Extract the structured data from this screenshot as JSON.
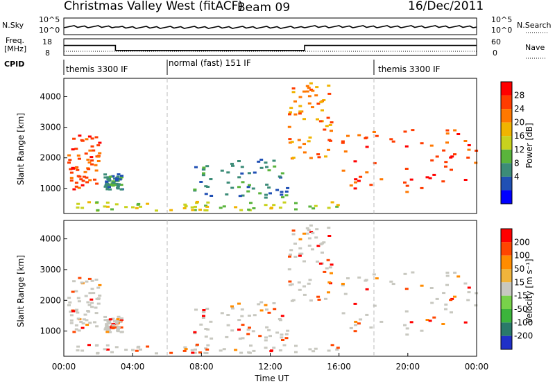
{
  "header": {
    "title": "Christmas Valley West (fitACF)",
    "beam": "Beam 09",
    "date": "16/Dec/2011"
  },
  "summary": {
    "nsky_label": "N.Sky",
    "nsky_ticks": [
      "10^5",
      "10^0"
    ],
    "nsearch_label": "N.Search",
    "nsearch_ticks": [
      "10^5",
      "10^0"
    ],
    "freq_label_1": "Freq.",
    "freq_label_2": "[MHz]",
    "freq_ticks": [
      "18",
      "8"
    ],
    "nave_label": "Nave",
    "nave_ticks": [
      "60",
      "0"
    ],
    "cpid_label": "CPID",
    "cpid_segments": [
      "themis 3300 IF",
      "normal (fast) 151 IF",
      "themis 3300 IF"
    ]
  },
  "power_panel": {
    "ylabel": "Slant Range [km]",
    "yticks": [
      "4000",
      "3000",
      "2000",
      "1000"
    ],
    "colorbar_label": "Power [dB]",
    "colorbar_ticks": [
      "28",
      "24",
      "20",
      "16",
      "12",
      "8",
      "4"
    ],
    "colors": [
      "#0000ff",
      "#2050b4",
      "#3c8c78",
      "#5ab43c",
      "#c8d21e",
      "#f0b400",
      "#ff7800",
      "#ff3c00",
      "#ff0000"
    ]
  },
  "velocity_panel": {
    "ylabel": "Slant Range [km]",
    "yticks": [
      "4000",
      "3000",
      "2000",
      "1000"
    ],
    "colorbar_label": "Velocity [m s⁻¹]",
    "colorbar_ticks": [
      "200",
      "100",
      "50",
      "15",
      "-15",
      "-50",
      "-100",
      "-200"
    ],
    "colors": [
      "#2030c8",
      "#2a7a6a",
      "#3cb43c",
      "#78d24a",
      "#c8c8c0",
      "#f0b43c",
      "#ff8c00",
      "#ff4600",
      "#ff0000"
    ],
    "ground_scatter_color": "#c8c8c0"
  },
  "xaxis": {
    "label": "Time UT",
    "ticks": [
      "00:00",
      "04:00",
      "08:00",
      "12:00",
      "16:00",
      "20:00",
      "00:00"
    ]
  },
  "chart_data": {
    "type": "heatmap",
    "x_range_hours": [
      0,
      24
    ],
    "y_range_km": [
      180,
      4600
    ],
    "cpid_changes_hours": [
      6,
      18
    ],
    "freq_steps_mhz": [
      {
        "from_hour": 0,
        "to_hour": 3,
        "freq": 14
      },
      {
        "from_hour": 3,
        "to_hour": 14,
        "freq": 11
      },
      {
        "from_hour": 14,
        "to_hour": 24,
        "freq": 14
      }
    ],
    "scatter_regions": [
      {
        "name": "E-region band",
        "t_start": 0.6,
        "t_end": 16.0,
        "r_min": 300,
        "r_max": 600,
        "power_db": 14,
        "velocity": 0
      },
      {
        "name": "early patch",
        "t_start": 0.2,
        "t_end": 2.0,
        "r_min": 1000,
        "r_max": 2800,
        "power_db": 26,
        "velocity": -20
      },
      {
        "name": "morning patch",
        "t_start": 2.3,
        "t_end": 3.3,
        "r_min": 1000,
        "r_max": 1500,
        "power_db": 6,
        "velocity": 0
      },
      {
        "name": "dawn rise",
        "t_start": 7.5,
        "t_end": 13.0,
        "r_min": 700,
        "r_max": 2000,
        "power_db": 8,
        "velocity": -30
      },
      {
        "name": "noon spike",
        "t_start": 13.0,
        "t_end": 15.5,
        "r_min": 2000,
        "r_max": 4500,
        "power_db": 22,
        "velocity": 0
      },
      {
        "name": "evening band",
        "t_start": 16.0,
        "t_end": 24.0,
        "r_min": 900,
        "r_max": 3000,
        "power_db": 28,
        "velocity": 0
      }
    ]
  }
}
